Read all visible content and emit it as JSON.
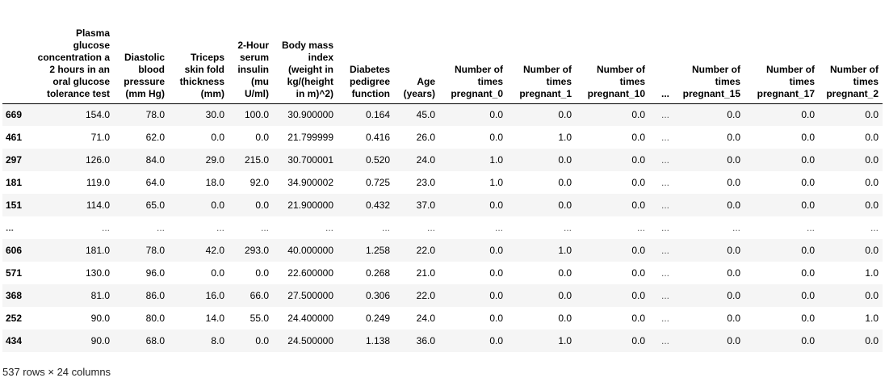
{
  "columns": [
    "",
    "Plasma glucose concentration a 2 hours in an oral glucose tolerance test",
    "Diastolic blood pressure (mm Hg)",
    "Triceps skin fold thickness (mm)",
    "2-Hour serum insulin (mu U/ml)",
    "Body mass index (weight in kg/(height in m)^2)",
    "Diabetes pedigree function",
    "Age (years)",
    "Number of times pregnant_0",
    "Number of times pregnant_1",
    "Number of times pregnant_10",
    "...",
    "Number of times pregnant_15",
    "Number of times pregnant_17",
    "Number of times pregnant_2"
  ],
  "rows": [
    [
      "669",
      "154.0",
      "78.0",
      "30.0",
      "100.0",
      "30.900000",
      "0.164",
      "45.0",
      "0.0",
      "0.0",
      "0.0",
      "...",
      "0.0",
      "0.0",
      "0.0"
    ],
    [
      "461",
      "71.0",
      "62.0",
      "0.0",
      "0.0",
      "21.799999",
      "0.416",
      "26.0",
      "0.0",
      "1.0",
      "0.0",
      "...",
      "0.0",
      "0.0",
      "0.0"
    ],
    [
      "297",
      "126.0",
      "84.0",
      "29.0",
      "215.0",
      "30.700001",
      "0.520",
      "24.0",
      "1.0",
      "0.0",
      "0.0",
      "...",
      "0.0",
      "0.0",
      "0.0"
    ],
    [
      "181",
      "119.0",
      "64.0",
      "18.0",
      "92.0",
      "34.900002",
      "0.725",
      "23.0",
      "1.0",
      "0.0",
      "0.0",
      "...",
      "0.0",
      "0.0",
      "0.0"
    ],
    [
      "151",
      "114.0",
      "65.0",
      "0.0",
      "0.0",
      "21.900000",
      "0.432",
      "37.0",
      "0.0",
      "0.0",
      "0.0",
      "...",
      "0.0",
      "0.0",
      "0.0"
    ],
    [
      "...",
      "...",
      "...",
      "...",
      "...",
      "...",
      "...",
      "...",
      "...",
      "...",
      "...",
      "...",
      "...",
      "...",
      "..."
    ],
    [
      "606",
      "181.0",
      "78.0",
      "42.0",
      "293.0",
      "40.000000",
      "1.258",
      "22.0",
      "0.0",
      "1.0",
      "0.0",
      "...",
      "0.0",
      "0.0",
      "0.0"
    ],
    [
      "571",
      "130.0",
      "96.0",
      "0.0",
      "0.0",
      "22.600000",
      "0.268",
      "21.0",
      "0.0",
      "0.0",
      "0.0",
      "...",
      "0.0",
      "0.0",
      "1.0"
    ],
    [
      "368",
      "81.0",
      "86.0",
      "16.0",
      "66.0",
      "27.500000",
      "0.306",
      "22.0",
      "0.0",
      "0.0",
      "0.0",
      "...",
      "0.0",
      "0.0",
      "0.0"
    ],
    [
      "252",
      "90.0",
      "80.0",
      "14.0",
      "55.0",
      "24.400000",
      "0.249",
      "24.0",
      "0.0",
      "0.0",
      "0.0",
      "...",
      "0.0",
      "0.0",
      "1.0"
    ],
    [
      "434",
      "90.0",
      "68.0",
      "8.0",
      "0.0",
      "24.500000",
      "1.138",
      "36.0",
      "0.0",
      "1.0",
      "0.0",
      "...",
      "0.0",
      "0.0",
      "0.0"
    ]
  ],
  "shape_text": "537 rows × 24 columns"
}
